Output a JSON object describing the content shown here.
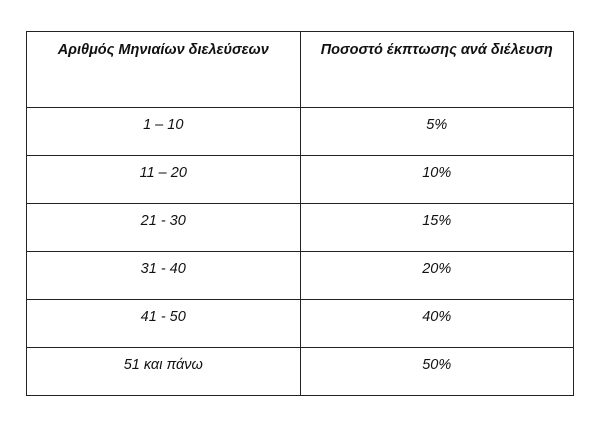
{
  "table": {
    "headers": [
      "Αριθμός Μηνιαίων διελεύσεων",
      "Ποσοστό έκπτωσης ανά διέλευση"
    ],
    "rows": [
      [
        "1 – 10",
        "5%"
      ],
      [
        "11 – 20",
        "10%"
      ],
      [
        "21 - 30",
        "15%"
      ],
      [
        "31 - 40",
        "20%"
      ],
      [
        "41 - 50",
        "40%"
      ],
      [
        "51 και πάνω",
        "50%"
      ]
    ]
  }
}
